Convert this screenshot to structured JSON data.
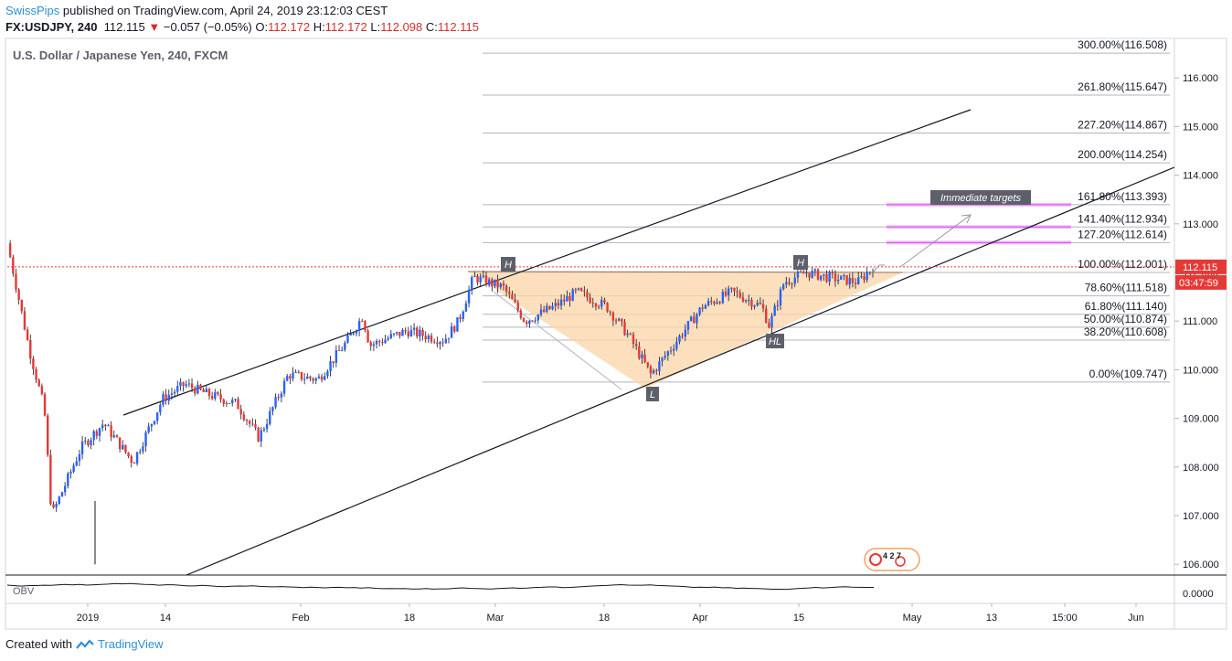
{
  "header": {
    "publisher": "SwissPips",
    "publish_text": " published on TradingView.com, April 24, 2019 23:12:03 CEST",
    "symbol_line": "FX:USDJPY, 240",
    "last_price": "112.115",
    "change_arrow": "▼",
    "change_text": "−0.057 (−0.05%)",
    "open_label": "O:",
    "open": "112.172",
    "high_label": "H:",
    "high": "112.172",
    "low_label": "L:",
    "low": "112.098",
    "close_label": "C:",
    "close": "112.115"
  },
  "footer": {
    "created_with": "Created with",
    "brand": "TradingView"
  },
  "colors": {
    "up": "#2962ff",
    "down": "#e53935",
    "wick": "#131722",
    "fib_line": "#b2b5be",
    "pink": "#e040fb",
    "triangle_fill": "#fbd6a8",
    "price_badge": "#e53935"
  },
  "chart_data": {
    "type": "candlestick",
    "title": "U.S. Dollar / Japanese Yen, 240, FXCM",
    "ylim": [
      105.9,
      116.8
    ],
    "y_ticks": [
      "116.000",
      "115.000",
      "114.000",
      "113.000",
      "112.000",
      "111.000",
      "110.000",
      "109.000",
      "108.000",
      "107.000",
      "106.000"
    ],
    "x_ticks": [
      "2019",
      "14",
      "Feb",
      "18",
      "Mar",
      "18",
      "Apr",
      "15",
      "May",
      "13",
      "15:00",
      "Jun"
    ],
    "price_path": [
      [
        "Dec 28",
        112.6
      ],
      [
        "Dec 31",
        110.4
      ],
      [
        "Jan 2",
        109.2
      ],
      [
        "Jan 3",
        107.0
      ],
      [
        "Jan 7",
        108.4
      ],
      [
        "Jan 10",
        108.9
      ],
      [
        "Jan 14",
        108.1
      ],
      [
        "Jan 18",
        109.4
      ],
      [
        "Jan 21",
        109.7
      ],
      [
        "Jan 24",
        109.5
      ],
      [
        "Jan 28",
        109.3
      ],
      [
        "Jan 31",
        108.6
      ],
      [
        "Feb 4",
        109.9
      ],
      [
        "Feb 8",
        109.8
      ],
      [
        "Feb 12",
        110.6
      ],
      [
        "Feb 14",
        111.1
      ],
      [
        "Feb 15",
        110.5
      ],
      [
        "Feb 20",
        110.8
      ],
      [
        "Feb 25",
        110.6
      ],
      [
        "Feb 27",
        111.0
      ],
      [
        "Mar 1",
        111.9
      ],
      [
        "Mar 5",
        111.7
      ],
      [
        "Mar 8",
        111.0
      ],
      [
        "Mar 12",
        111.3
      ],
      [
        "Mar 15",
        111.6
      ],
      [
        "Mar 19",
        111.3
      ],
      [
        "Mar 22",
        110.7
      ],
      [
        "Mar 25",
        109.9
      ],
      [
        "Mar 28",
        110.5
      ],
      [
        "Apr 1",
        111.3
      ],
      [
        "Apr 5",
        111.6
      ],
      [
        "Apr 9",
        111.3
      ],
      [
        "Apr 10",
        110.9
      ],
      [
        "Apr 12",
        111.8
      ],
      [
        "Apr 15",
        112.0
      ],
      [
        "Apr 18",
        111.9
      ],
      [
        "Apr 22",
        111.8
      ],
      [
        "Apr 24",
        112.1
      ]
    ],
    "fib_levels": [
      {
        "label": "300.00%(116.508)",
        "value": 116.508
      },
      {
        "label": "261.80%(115.647)",
        "value": 115.647
      },
      {
        "label": "227.20%(114.867)",
        "value": 114.867
      },
      {
        "label": "200.00%(114.254)",
        "value": 114.254
      },
      {
        "label": "161.80%(113.393)",
        "value": 113.393
      },
      {
        "label": "141.40%(112.934)",
        "value": 112.934
      },
      {
        "label": "127.20%(112.614)",
        "value": 112.614
      },
      {
        "label": "100.00%(112.001)",
        "value": 112.001
      },
      {
        "label": "78.60%(111.518)",
        "value": 111.518
      },
      {
        "label": "61.80%(111.140)",
        "value": 111.14
      },
      {
        "label": "50.00%(110.874)",
        "value": 110.874
      },
      {
        "label": "38.20%(110.608)",
        "value": 110.608
      },
      {
        "label": "0.00%(109.747)",
        "value": 109.747
      }
    ],
    "pattern_labels": [
      "H",
      "L",
      "H",
      "HL"
    ],
    "annotation": "Immediate targets",
    "current_price": "112.115",
    "countdown": "03:47:59",
    "indicator": {
      "name": "OBV",
      "ticks": [
        "0.0000"
      ]
    }
  }
}
